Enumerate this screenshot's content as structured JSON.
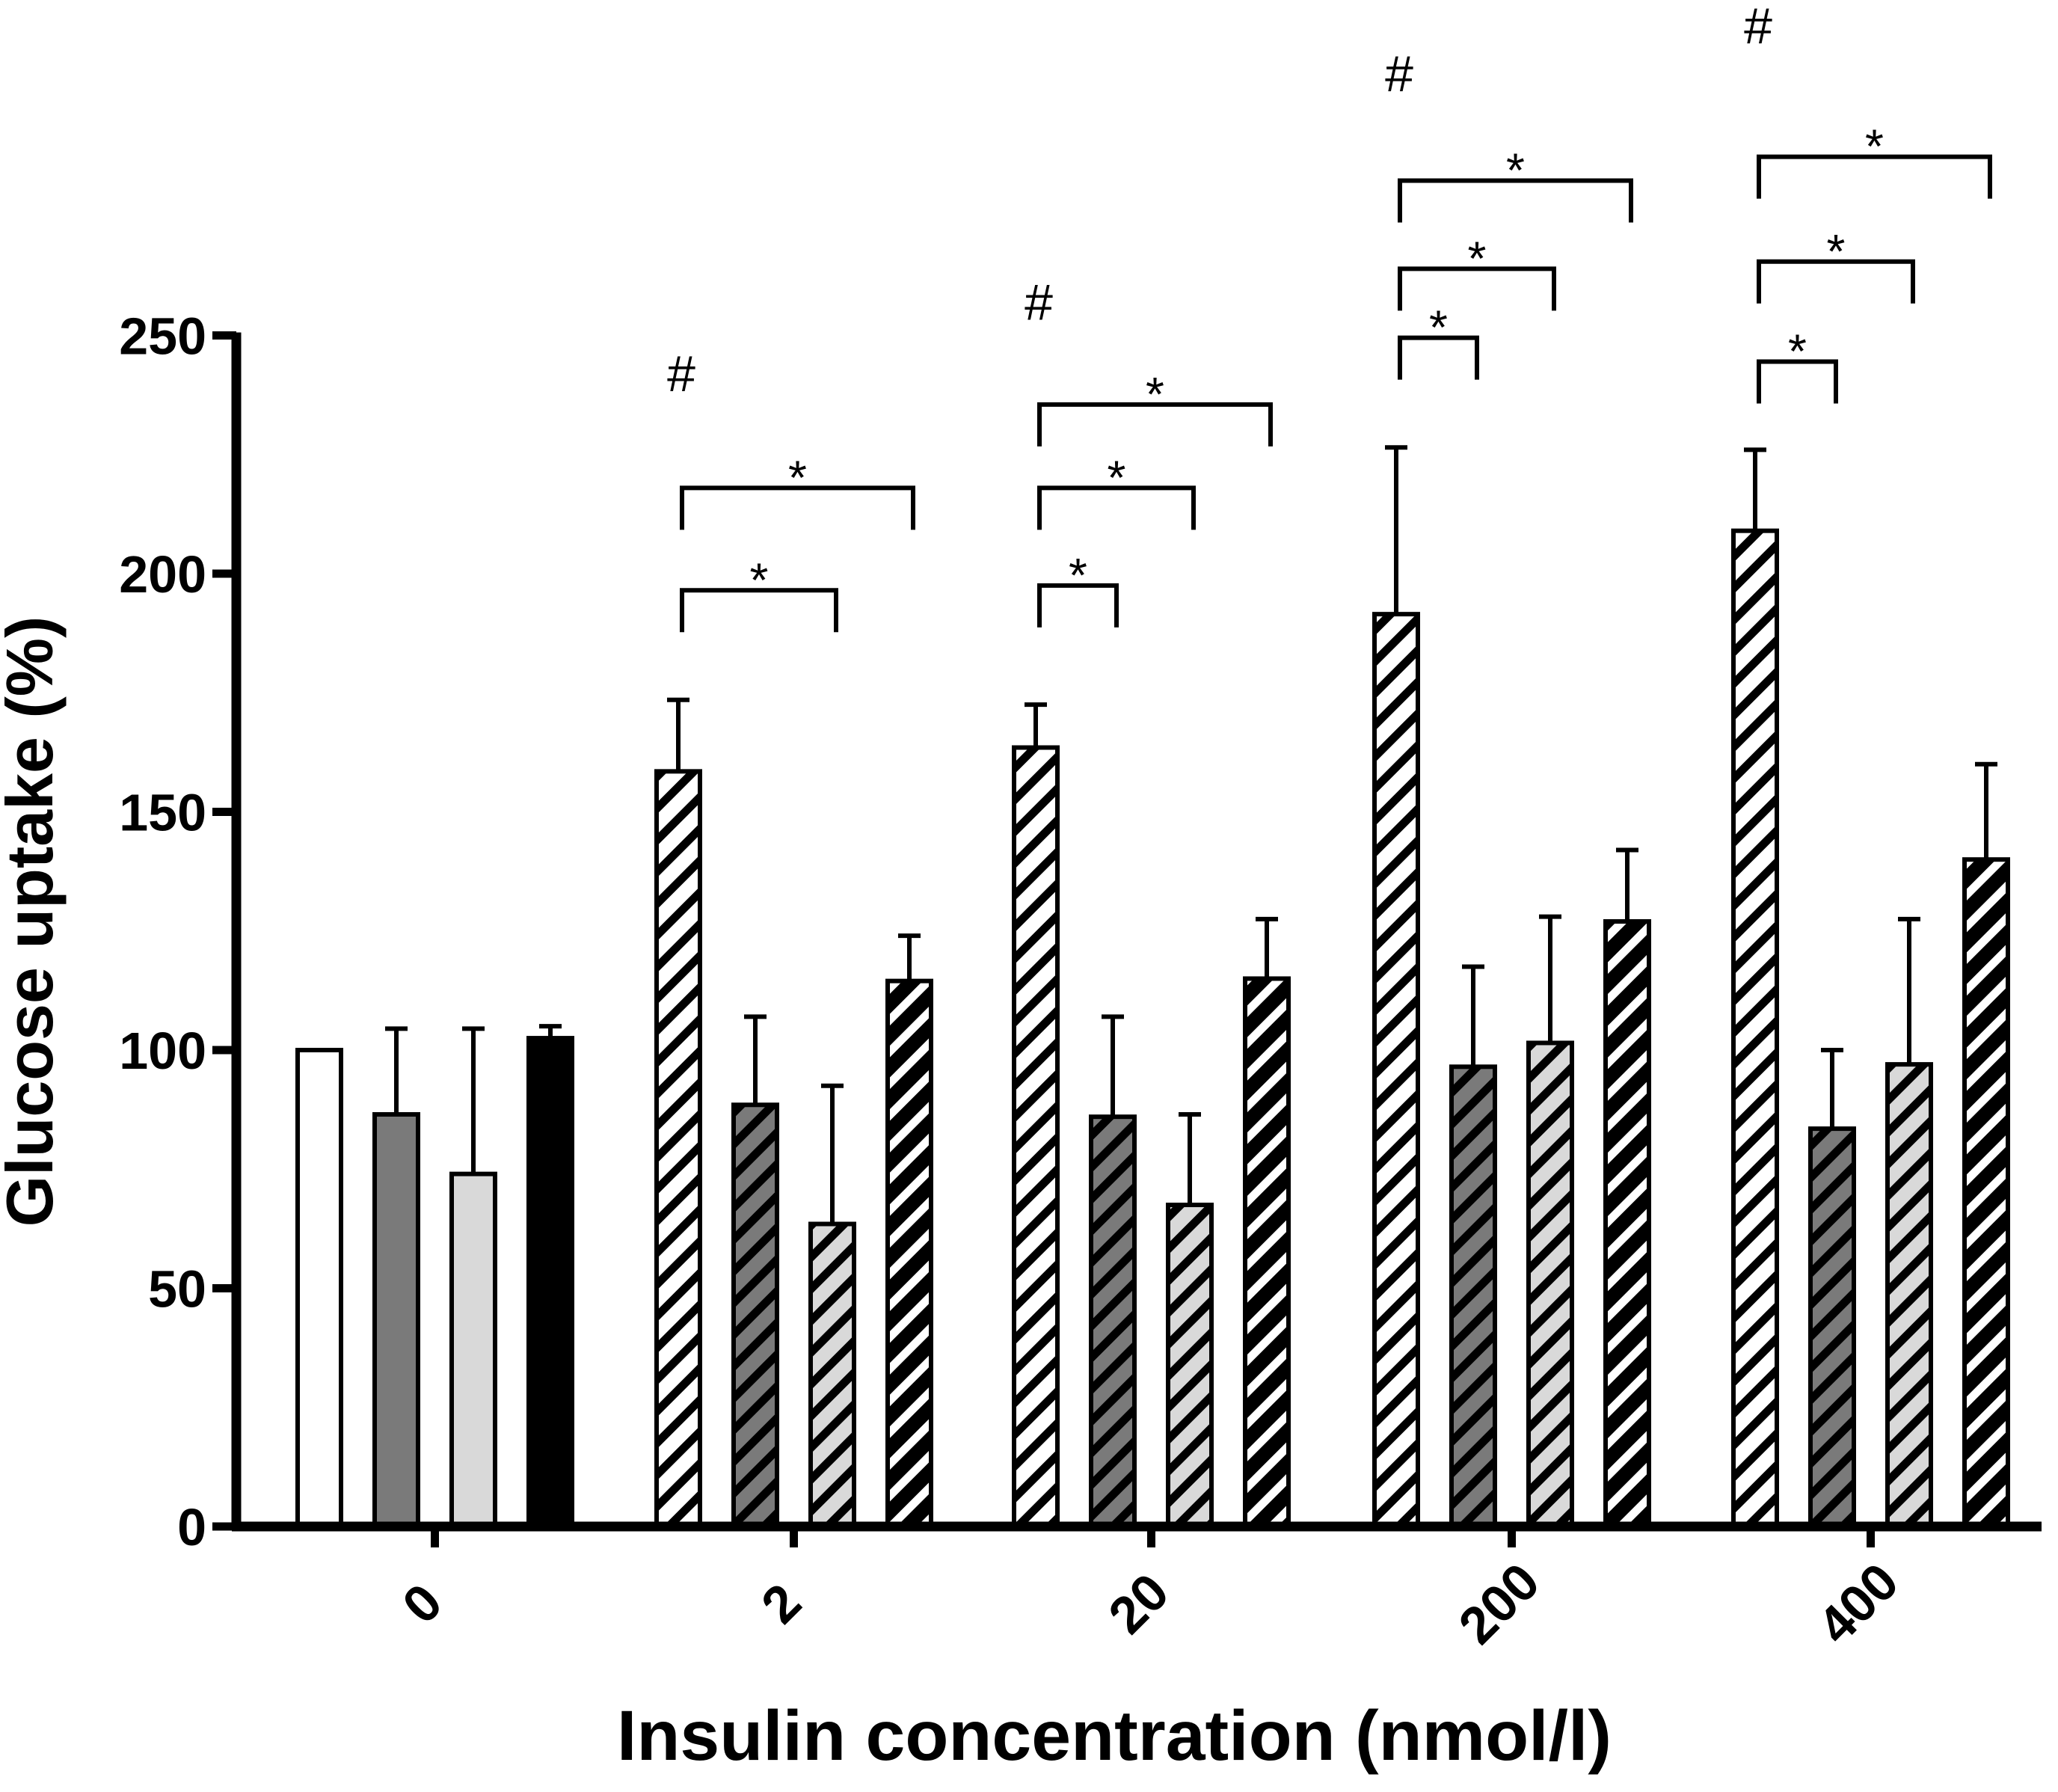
{
  "chart_data": {
    "type": "bar",
    "title": "",
    "xlabel": "Insulin concentration (nmol/l)",
    "ylabel": "Glucose uptake (%)",
    "ylim": [
      0,
      250
    ],
    "yticks": [
      0,
      50,
      100,
      150,
      200,
      250
    ],
    "categories": [
      "0",
      "2",
      "20",
      "200",
      "400"
    ],
    "grid": false,
    "legend": "none",
    "series": [
      {
        "name": "series 1 (white)",
        "fill": "#ffffff",
        "values": [
          100,
          158.5,
          163.5,
          191.5,
          209
        ],
        "errors": [
          0,
          15,
          9,
          35,
          17
        ]
      },
      {
        "name": "series 2 (dark grey)",
        "fill": "#7a7a7a",
        "values": [
          86.5,
          88.5,
          86,
          96.5,
          83.5
        ],
        "errors": [
          18,
          18.5,
          21,
          21,
          16.5
        ]
      },
      {
        "name": "series 3 (light grey)",
        "fill": "#d9d9d9",
        "values": [
          74,
          63.5,
          67.5,
          101.5,
          97
        ],
        "errors": [
          30.5,
          29,
          19,
          26.5,
          30.5
        ]
      },
      {
        "name": "series 4 (black)",
        "fill": "#000000",
        "values": [
          102.5,
          114.5,
          115,
          127,
          140
        ],
        "errors": [
          2.5,
          9.5,
          12.5,
          15,
          20
        ]
      }
    ],
    "annotations": [
      {
        "group": 1,
        "text": "#",
        "value": 243
      },
      {
        "group": 2,
        "text": "#",
        "value": 258
      },
      {
        "group": 3,
        "text": "#",
        "value": 306
      },
      {
        "group": 4,
        "text": "#",
        "value": 316
      }
    ],
    "significance": [
      {
        "group": 1,
        "from": 0,
        "to": 2,
        "text": "*",
        "value": 196.5
      },
      {
        "group": 1,
        "from": 0,
        "to": 3,
        "text": "*",
        "value": 218
      },
      {
        "group": 2,
        "from": 0,
        "to": 1,
        "text": "*",
        "value": 197.5
      },
      {
        "group": 2,
        "from": 0,
        "to": 2,
        "text": "*",
        "value": 218
      },
      {
        "group": 2,
        "from": 0,
        "to": 3,
        "text": "*",
        "value": 235.5
      },
      {
        "group": 3,
        "from": 0,
        "to": 1,
        "text": "*",
        "value": 249.5
      },
      {
        "group": 3,
        "from": 0,
        "to": 2,
        "text": "*",
        "value": 264
      },
      {
        "group": 3,
        "from": 0,
        "to": 3,
        "text": "*",
        "value": 282.5
      },
      {
        "group": 4,
        "from": 0,
        "to": 1,
        "text": "*",
        "value": 244.5
      },
      {
        "group": 4,
        "from": 0,
        "to": 2,
        "text": "*",
        "value": 265.5
      },
      {
        "group": 4,
        "from": 0,
        "to": 3,
        "text": "*",
        "value": 287.5
      }
    ]
  }
}
